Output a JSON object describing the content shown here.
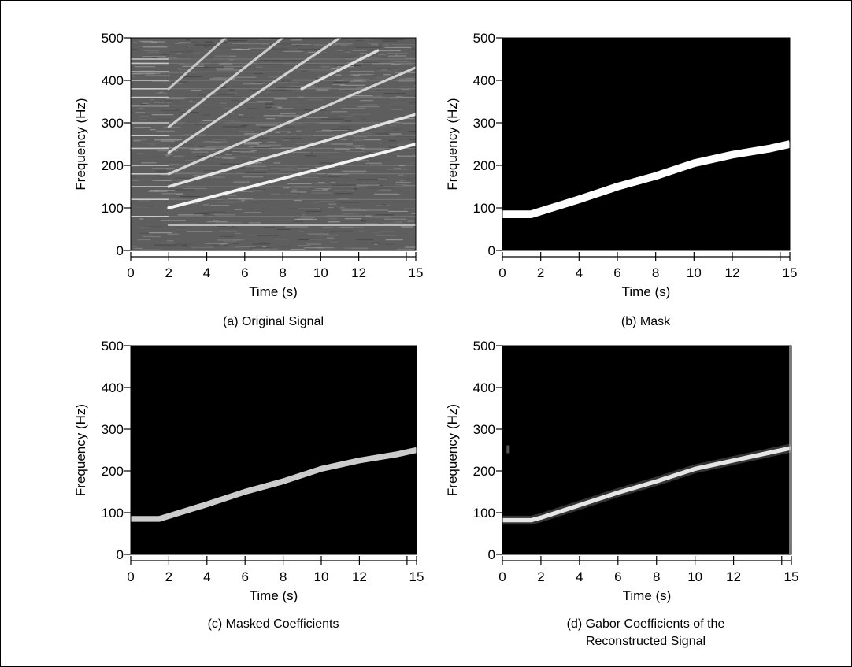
{
  "chart_data": [
    {
      "type": "heatmap",
      "caption": "(a) Original Signal",
      "xlabel": "Time (s)",
      "ylabel": "Frequency (Hz)",
      "xlim": [
        0,
        15
      ],
      "ylim": [
        0,
        500
      ],
      "xticks": [
        0,
        2,
        4,
        6,
        8,
        10,
        12,
        15
      ],
      "yticks": [
        0,
        100,
        200,
        300,
        400,
        500
      ],
      "background": "noisy-gray",
      "stationary_tones_hz": [
        80,
        120,
        150,
        180,
        200,
        240,
        270,
        300,
        340,
        360,
        380,
        400,
        420,
        440,
        450
      ],
      "chirps": [
        {
          "name": "",
          "points": [
            [
              2,
              60
            ],
            [
              15,
              60
            ]
          ],
          "strength": 0.4
        },
        {
          "name": "",
          "points": [
            [
              2,
              100
            ],
            [
              15,
              250
            ]
          ],
          "strength": 0.9
        },
        {
          "name": "",
          "points": [
            [
              2,
              150
            ],
            [
              15,
              320
            ]
          ],
          "strength": 0.75
        },
        {
          "name": "",
          "points": [
            [
              2,
              180
            ],
            [
              15,
              430
            ]
          ],
          "strength": 0.6
        },
        {
          "name": "",
          "points": [
            [
              2,
              230
            ],
            [
              11,
              500
            ]
          ],
          "strength": 0.6
        },
        {
          "name": "",
          "points": [
            [
              2,
              290
            ],
            [
              8,
              500
            ]
          ],
          "strength": 0.55
        },
        {
          "name": "",
          "points": [
            [
              2,
              380
            ],
            [
              5,
              500
            ]
          ],
          "strength": 0.5
        },
        {
          "name": "",
          "points": [
            [
              9,
              380
            ],
            [
              13,
              470
            ]
          ],
          "strength": 0.7
        }
      ]
    },
    {
      "type": "heatmap",
      "caption": "(b) Mask",
      "xlabel": "Time (s)",
      "ylabel": "Frequency (Hz)",
      "xlim": [
        0,
        15
      ],
      "ylim": [
        0,
        500
      ],
      "xticks": [
        0,
        2,
        4,
        6,
        8,
        10,
        12,
        15
      ],
      "yticks": [
        0,
        100,
        200,
        300,
        400,
        500
      ],
      "background": "black",
      "curve": [
        [
          0,
          85
        ],
        [
          1.5,
          85
        ],
        [
          2,
          92
        ],
        [
          4,
          120
        ],
        [
          6,
          150
        ],
        [
          8,
          175
        ],
        [
          10,
          205
        ],
        [
          12,
          225
        ],
        [
          14,
          240
        ],
        [
          15,
          250
        ]
      ],
      "band_hz": 18,
      "intensity": 1.0
    },
    {
      "type": "heatmap",
      "caption": "(c) Masked Coefficients",
      "xlabel": "Time (s)",
      "ylabel": "Frequency (Hz)",
      "xlim": [
        0,
        15
      ],
      "ylim": [
        0,
        500
      ],
      "xticks": [
        0,
        2,
        4,
        6,
        8,
        10,
        12,
        15
      ],
      "yticks": [
        0,
        100,
        200,
        300,
        400,
        500
      ],
      "background": "black",
      "curve": [
        [
          0,
          85
        ],
        [
          1.5,
          85
        ],
        [
          2,
          92
        ],
        [
          4,
          120
        ],
        [
          6,
          150
        ],
        [
          8,
          175
        ],
        [
          10,
          205
        ],
        [
          12,
          225
        ],
        [
          14,
          240
        ],
        [
          15,
          250
        ]
      ],
      "band_hz": 14,
      "intensity": 0.8
    },
    {
      "type": "heatmap",
      "caption": "(d) Gabor Coefficients of the Reconstructed Signal",
      "xlabel": "Time (s)",
      "ylabel": "Frequency (Hz)",
      "xlim": [
        0,
        15
      ],
      "ylim": [
        0,
        500
      ],
      "xticks": [
        0,
        2,
        4,
        6,
        8,
        10,
        12,
        15
      ],
      "yticks": [
        0,
        100,
        200,
        300,
        400,
        500
      ],
      "background": "black",
      "curve": [
        [
          0,
          82
        ],
        [
          1.5,
          82
        ],
        [
          2,
          88
        ],
        [
          4,
          118
        ],
        [
          6,
          148
        ],
        [
          8,
          175
        ],
        [
          10,
          205
        ],
        [
          12,
          225
        ],
        [
          14,
          245
        ],
        [
          15,
          255
        ]
      ],
      "band_hz": 10,
      "intensity": 0.9,
      "artifacts": [
        {
          "t": 0.3,
          "f": 250
        },
        {
          "t": 15,
          "f": 500
        }
      ]
    }
  ]
}
